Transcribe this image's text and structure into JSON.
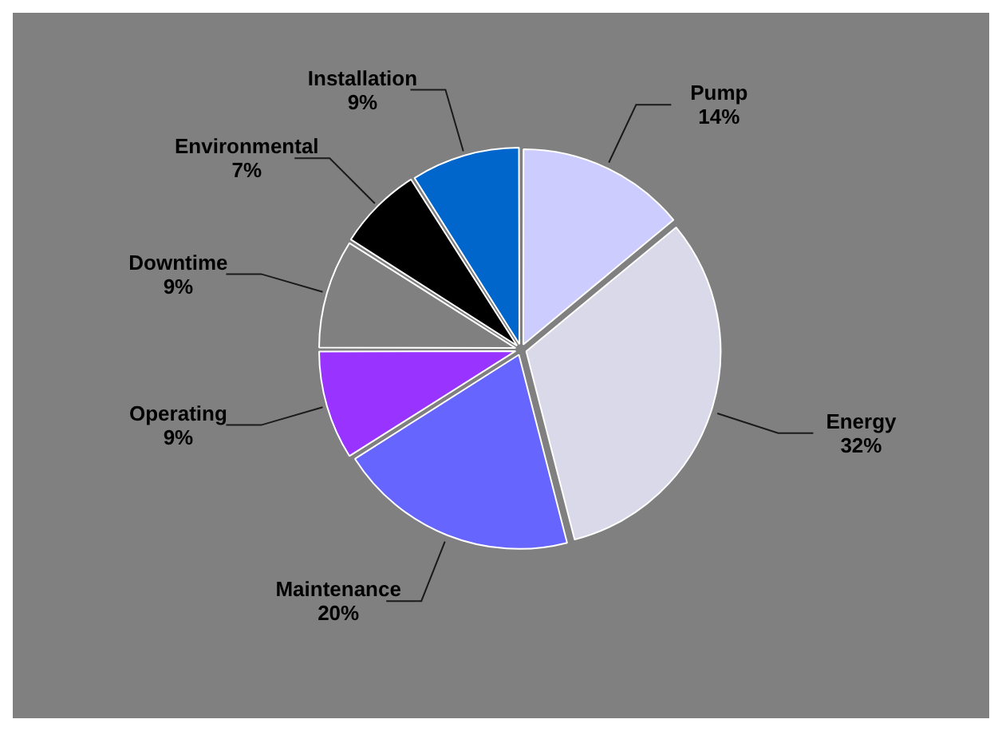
{
  "chart_data": {
    "type": "pie",
    "categories": [
      "Pump",
      "Energy",
      "Maintenance",
      "Operating",
      "Downtime",
      "Environmental",
      "Installation"
    ],
    "values": [
      14,
      32,
      20,
      9,
      9,
      7,
      9
    ],
    "colors": [
      "#ccccff",
      "#d9d9ea",
      "#6666ff",
      "#9933ff",
      "#808080",
      "#000000",
      "#0066cc"
    ],
    "value_labels": [
      "14%",
      "32%",
      "20%",
      "9%",
      "9%",
      "7%",
      "9%"
    ],
    "legend": false
  }
}
